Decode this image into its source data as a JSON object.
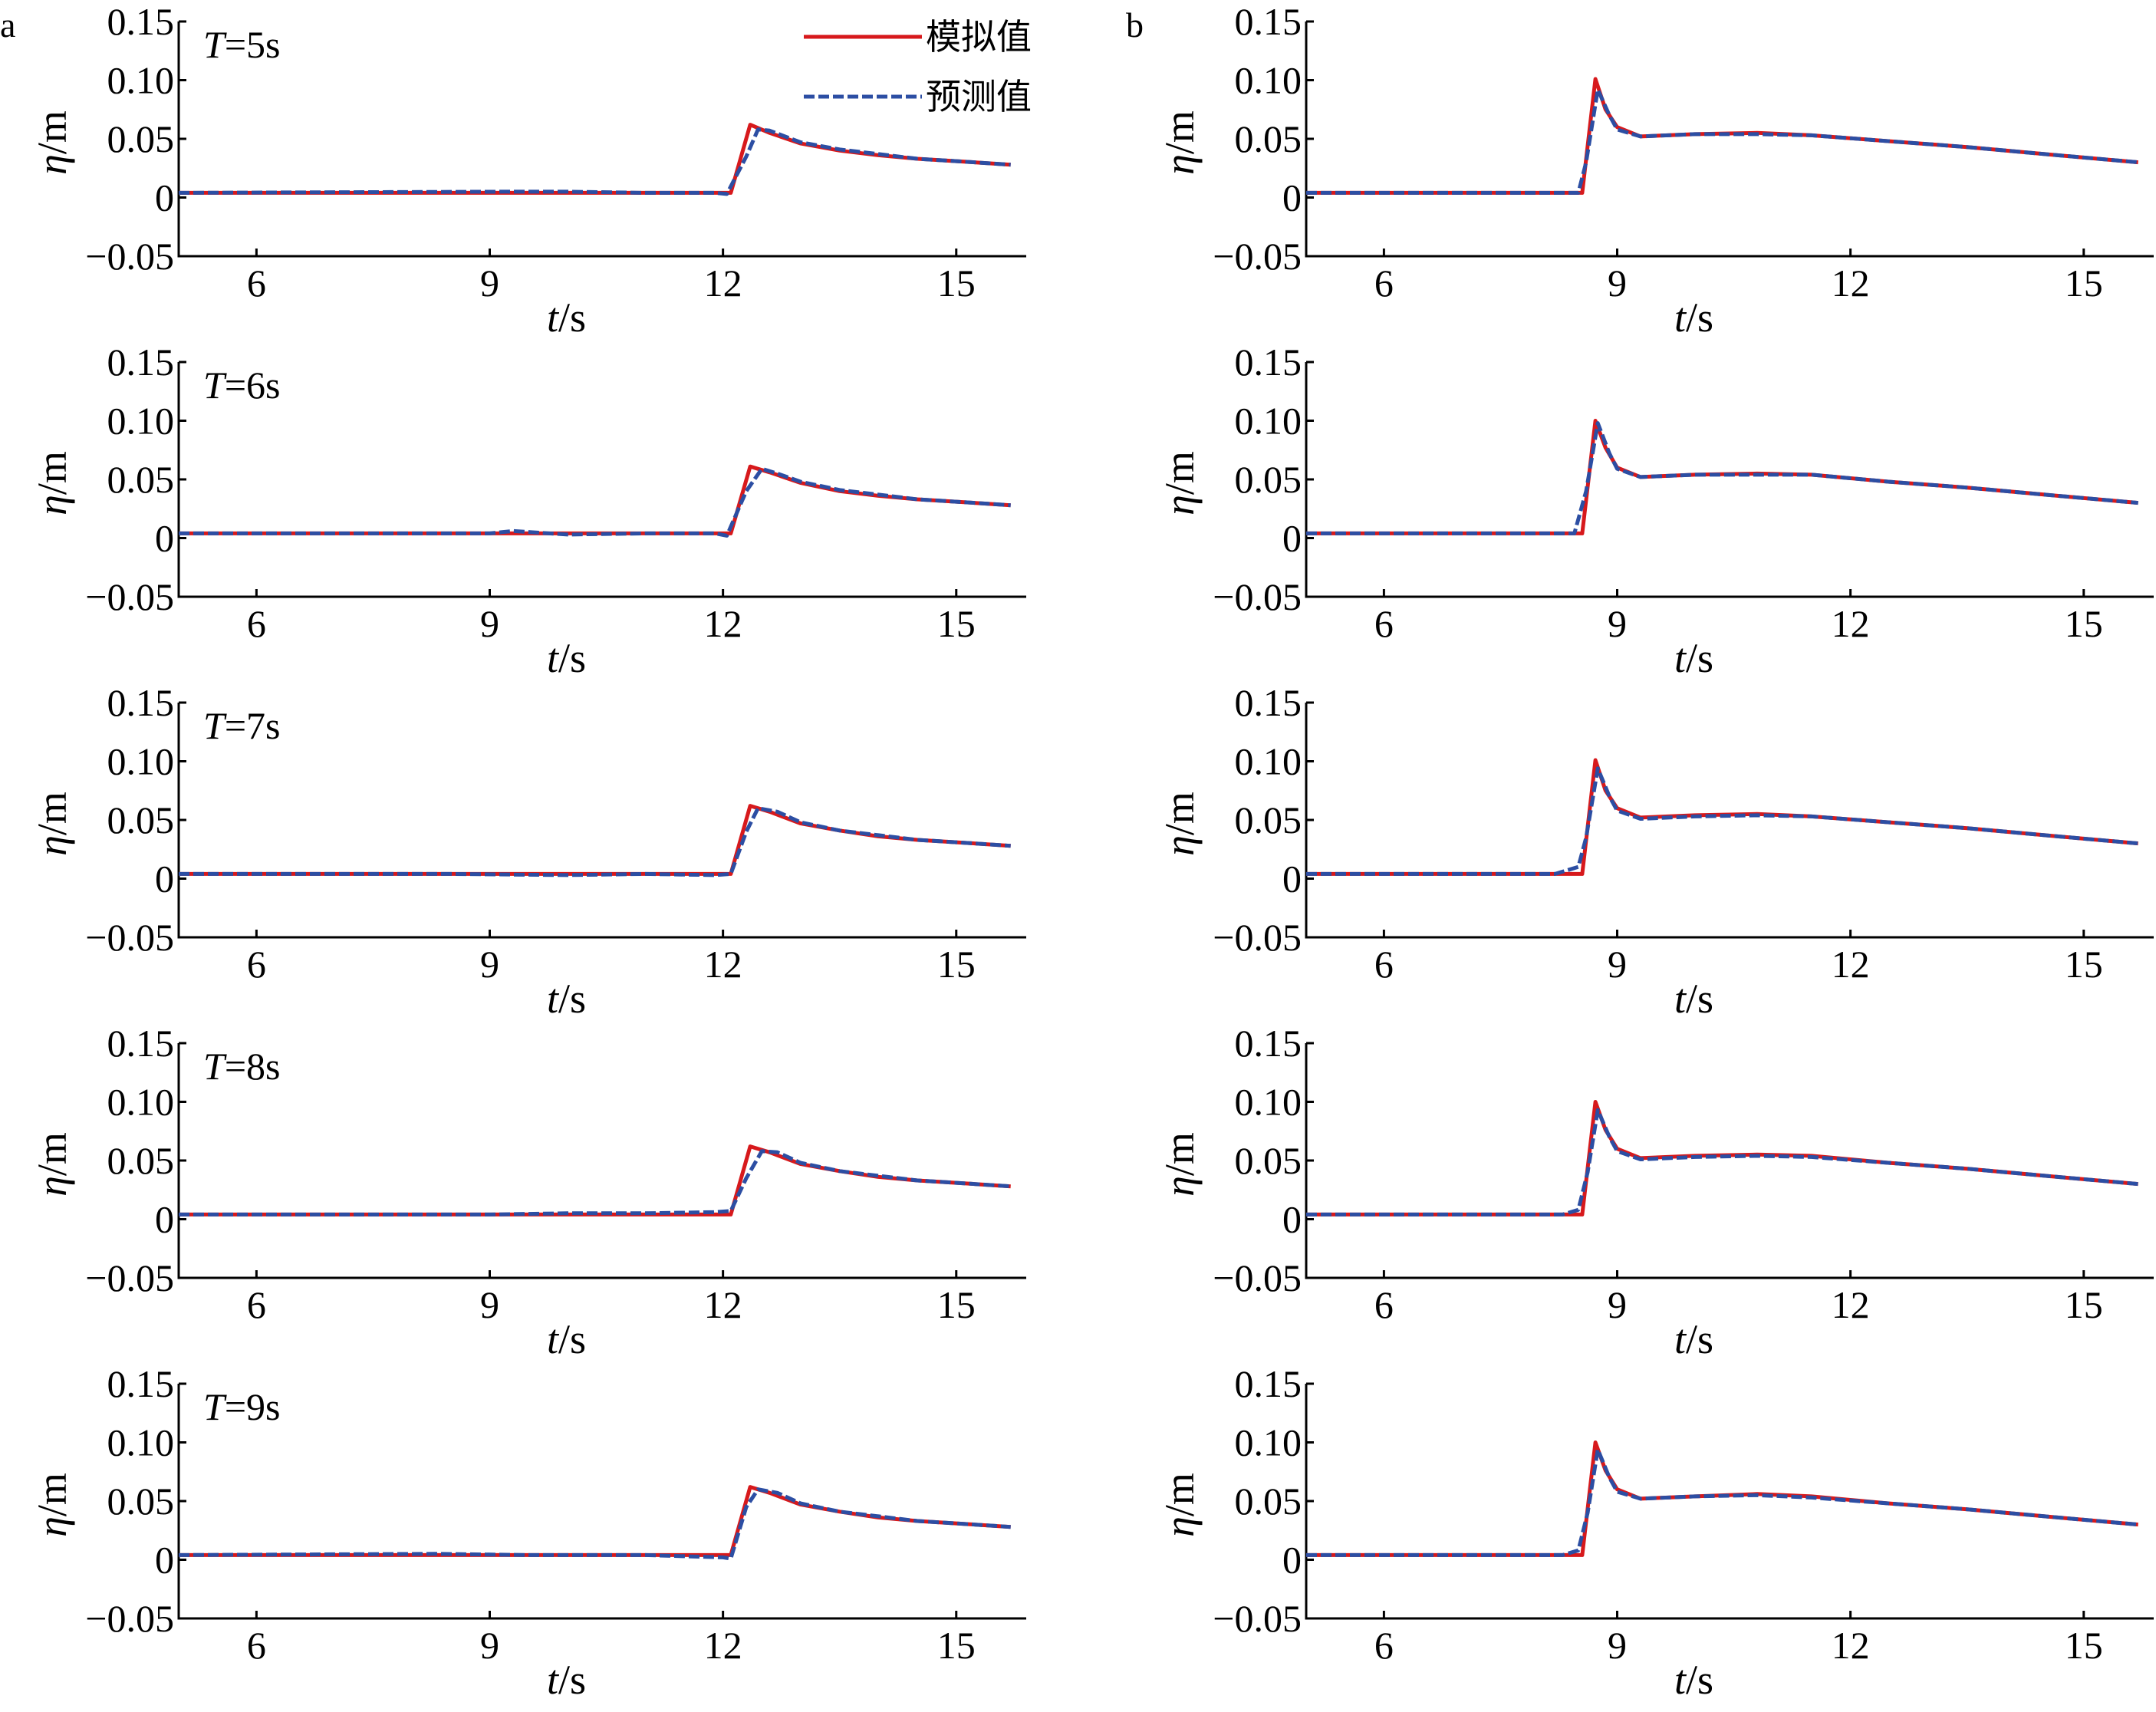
{
  "colors": {
    "simulated": "#d7191c",
    "predicted": "#2c4ea3",
    "axis": "#000000"
  },
  "legend": {
    "simulated_label": "模拟值",
    "predicted_label": "预测值"
  },
  "panels": [
    {
      "label": "a"
    },
    {
      "label": "b"
    }
  ],
  "chart_data": [
    {
      "type": "line",
      "panel": "a",
      "row": 0,
      "annotation_var": "T",
      "annotation_val": "=5s",
      "ylabel_sym": "η",
      "ylabel_unit": "/m",
      "xlabel_sym": "t",
      "xlabel_unit": "/s",
      "xlim": [
        5,
        15.9
      ],
      "ylim": [
        -0.05,
        0.15
      ],
      "xticks": [
        6,
        9,
        12,
        15
      ],
      "yticks": [
        -0.05,
        0,
        0.05,
        0.1,
        0.15
      ],
      "ytick_labels": [
        "−0.05",
        "0",
        "0.05",
        "0.10",
        "0.15"
      ],
      "series": [
        {
          "name": "模拟值",
          "x": [
            5,
            12.1,
            12.35,
            12.6,
            13,
            13.5,
            14,
            14.5,
            15,
            15.7
          ],
          "y": [
            0.004,
            0.004,
            0.062,
            0.055,
            0.046,
            0.04,
            0.036,
            0.033,
            0.031,
            0.028
          ]
        },
        {
          "name": "预测值",
          "x": [
            5,
            9.2,
            10,
            11,
            11.9,
            12.05,
            12.3,
            12.45,
            12.6,
            13,
            13.5,
            14,
            14.5,
            15,
            15.7
          ],
          "y": [
            0.004,
            0.005,
            0.005,
            0.004,
            0.004,
            0.003,
            0.035,
            0.058,
            0.057,
            0.047,
            0.041,
            0.037,
            0.033,
            0.031,
            0.028
          ]
        }
      ]
    },
    {
      "type": "line",
      "panel": "a",
      "row": 1,
      "annotation_var": "T",
      "annotation_val": "=6s",
      "ylabel_sym": "η",
      "ylabel_unit": "/m",
      "xlabel_sym": "t",
      "xlabel_unit": "/s",
      "xlim": [
        5,
        15.9
      ],
      "ylim": [
        -0.05,
        0.15
      ],
      "xticks": [
        6,
        9,
        12,
        15
      ],
      "yticks": [
        -0.05,
        0,
        0.05,
        0.1,
        0.15
      ],
      "ytick_labels": [
        "−0.05",
        "0",
        "0.05",
        "0.10",
        "0.15"
      ],
      "series": [
        {
          "name": "模拟值",
          "x": [
            5,
            12.1,
            12.35,
            12.6,
            13,
            13.5,
            14,
            14.5,
            15,
            15.7
          ],
          "y": [
            0.004,
            0.004,
            0.061,
            0.056,
            0.047,
            0.04,
            0.036,
            0.033,
            0.031,
            0.028
          ]
        },
        {
          "name": "预测值",
          "x": [
            5,
            9,
            9.3,
            10,
            11,
            11.9,
            12.05,
            12.3,
            12.5,
            12.7,
            13,
            13.5,
            14,
            14.5,
            15,
            15.7
          ],
          "y": [
            0.004,
            0.004,
            0.006,
            0.003,
            0.004,
            0.004,
            0.002,
            0.04,
            0.059,
            0.055,
            0.048,
            0.041,
            0.037,
            0.033,
            0.031,
            0.028
          ]
        }
      ]
    },
    {
      "type": "line",
      "panel": "a",
      "row": 2,
      "annotation_var": "T",
      "annotation_val": "=7s",
      "ylabel_sym": "η",
      "ylabel_unit": "/m",
      "xlabel_sym": "t",
      "xlabel_unit": "/s",
      "xlim": [
        5,
        15.9
      ],
      "ylim": [
        -0.05,
        0.15
      ],
      "xticks": [
        6,
        9,
        12,
        15
      ],
      "yticks": [
        -0.05,
        0,
        0.05,
        0.1,
        0.15
      ],
      "ytick_labels": [
        "−0.05",
        "0",
        "0.05",
        "0.10",
        "0.15"
      ],
      "series": [
        {
          "name": "模拟值",
          "x": [
            5,
            12.1,
            12.35,
            12.6,
            13,
            13.5,
            14,
            14.5,
            15,
            15.7
          ],
          "y": [
            0.004,
            0.004,
            0.062,
            0.057,
            0.047,
            0.041,
            0.036,
            0.033,
            0.031,
            0.028
          ]
        },
        {
          "name": "预测值",
          "x": [
            5,
            8.5,
            10,
            11,
            11.9,
            12.1,
            12.3,
            12.45,
            12.7,
            13,
            13.5,
            14,
            14.5,
            15,
            15.7
          ],
          "y": [
            0.004,
            0.004,
            0.003,
            0.004,
            0.003,
            0.004,
            0.04,
            0.06,
            0.057,
            0.048,
            0.041,
            0.037,
            0.033,
            0.031,
            0.028
          ]
        }
      ]
    },
    {
      "type": "line",
      "panel": "a",
      "row": 3,
      "annotation_var": "T",
      "annotation_val": "=8s",
      "ylabel_sym": "η",
      "ylabel_unit": "/m",
      "xlabel_sym": "t",
      "xlabel_unit": "/s",
      "xlim": [
        5,
        15.9
      ],
      "ylim": [
        -0.05,
        0.15
      ],
      "xticks": [
        6,
        9,
        12,
        15
      ],
      "yticks": [
        -0.05,
        0,
        0.05,
        0.1,
        0.15
      ],
      "ytick_labels": [
        "−0.05",
        "0",
        "0.05",
        "0.10",
        "0.15"
      ],
      "series": [
        {
          "name": "模拟值",
          "x": [
            5,
            12.1,
            12.35,
            12.6,
            13,
            13.5,
            14,
            14.5,
            15,
            15.7
          ],
          "y": [
            0.004,
            0.004,
            0.062,
            0.057,
            0.047,
            0.041,
            0.036,
            0.033,
            0.031,
            0.028
          ]
        },
        {
          "name": "预测值",
          "x": [
            5,
            9,
            10,
            11,
            11.9,
            12.1,
            12.3,
            12.5,
            12.7,
            13,
            13.5,
            14,
            14.5,
            15,
            15.7
          ],
          "y": [
            0.004,
            0.004,
            0.005,
            0.005,
            0.006,
            0.007,
            0.035,
            0.058,
            0.057,
            0.048,
            0.041,
            0.037,
            0.033,
            0.031,
            0.028
          ]
        }
      ]
    },
    {
      "type": "line",
      "panel": "a",
      "row": 4,
      "annotation_var": "T",
      "annotation_val": "=9s",
      "ylabel_sym": "η",
      "ylabel_unit": "/m",
      "xlabel_sym": "t",
      "xlabel_unit": "/s",
      "xlim": [
        5,
        15.9
      ],
      "ylim": [
        -0.05,
        0.15
      ],
      "xticks": [
        6,
        9,
        12,
        15
      ],
      "yticks": [
        -0.05,
        0,
        0.05,
        0.1,
        0.15
      ],
      "ytick_labels": [
        "−0.05",
        "0",
        "0.05",
        "0.10",
        "0.15"
      ],
      "series": [
        {
          "name": "模拟值",
          "x": [
            5,
            12.1,
            12.35,
            12.6,
            13,
            13.5,
            14,
            14.5,
            15,
            15.7
          ],
          "y": [
            0.004,
            0.004,
            0.062,
            0.057,
            0.047,
            0.041,
            0.036,
            0.033,
            0.031,
            0.028
          ]
        },
        {
          "name": "预测值",
          "x": [
            5,
            8.3,
            9.5,
            11,
            12,
            12.1,
            12.3,
            12.45,
            12.7,
            13,
            13.5,
            14,
            14.5,
            15,
            15.7
          ],
          "y": [
            0.004,
            0.005,
            0.004,
            0.004,
            0.002,
            0.001,
            0.045,
            0.06,
            0.057,
            0.048,
            0.041,
            0.037,
            0.033,
            0.031,
            0.028
          ]
        }
      ]
    },
    {
      "type": "line",
      "panel": "b",
      "row": 0,
      "ylabel_sym": "η",
      "ylabel_unit": "/m",
      "xlabel_sym": "t",
      "xlabel_unit": "/s",
      "xlim": [
        5,
        15.9
      ],
      "ylim": [
        -0.05,
        0.15
      ],
      "xticks": [
        6,
        9,
        12,
        15
      ],
      "yticks": [
        -0.05,
        0,
        0.05,
        0.1,
        0.15
      ],
      "ytick_labels": [
        "−0.05",
        "0",
        "0.05",
        "0.10",
        "0.15"
      ],
      "series": [
        {
          "name": "模拟值",
          "x": [
            5,
            8.55,
            8.72,
            8.85,
            9,
            9.3,
            10,
            10.8,
            11.5,
            12.5,
            13.5,
            14.5,
            15.7
          ],
          "y": [
            0.004,
            0.004,
            0.101,
            0.075,
            0.06,
            0.052,
            0.054,
            0.055,
            0.053,
            0.048,
            0.043,
            0.037,
            0.03
          ]
        },
        {
          "name": "预测值",
          "x": [
            5,
            8.5,
            8.6,
            8.75,
            8.9,
            9,
            9.3,
            10,
            10.8,
            11.5,
            12.5,
            13.5,
            14.5,
            15.7
          ],
          "y": [
            0.004,
            0.004,
            0.03,
            0.092,
            0.07,
            0.058,
            0.052,
            0.054,
            0.054,
            0.053,
            0.048,
            0.043,
            0.037,
            0.03
          ]
        }
      ]
    },
    {
      "type": "line",
      "panel": "b",
      "row": 1,
      "ylabel_sym": "η",
      "ylabel_unit": "/m",
      "xlabel_sym": "t",
      "xlabel_unit": "/s",
      "xlim": [
        5,
        15.9
      ],
      "ylim": [
        -0.05,
        0.15
      ],
      "xticks": [
        6,
        9,
        12,
        15
      ],
      "yticks": [
        -0.05,
        0,
        0.05,
        0.1,
        0.15
      ],
      "ytick_labels": [
        "−0.05",
        "0",
        "0.05",
        "0.10",
        "0.15"
      ],
      "series": [
        {
          "name": "模拟值",
          "x": [
            5,
            8.55,
            8.72,
            8.85,
            9,
            9.3,
            10,
            10.8,
            11.5,
            12.5,
            13.5,
            14.5,
            15.7
          ],
          "y": [
            0.004,
            0.004,
            0.1,
            0.077,
            0.06,
            0.052,
            0.054,
            0.055,
            0.054,
            0.048,
            0.043,
            0.037,
            0.03
          ]
        },
        {
          "name": "预测值",
          "x": [
            5,
            8.45,
            8.6,
            8.75,
            8.9,
            9,
            9.3,
            10,
            10.8,
            11.5,
            12.5,
            13.5,
            14.5,
            15.7
          ],
          "y": [
            0.004,
            0.004,
            0.04,
            0.098,
            0.072,
            0.059,
            0.052,
            0.054,
            0.054,
            0.054,
            0.048,
            0.043,
            0.037,
            0.03
          ]
        }
      ]
    },
    {
      "type": "line",
      "panel": "b",
      "row": 2,
      "ylabel_sym": "η",
      "ylabel_unit": "/m",
      "xlabel_sym": "t",
      "xlabel_unit": "/s",
      "xlim": [
        5,
        15.9
      ],
      "ylim": [
        -0.05,
        0.15
      ],
      "xticks": [
        6,
        9,
        12,
        15
      ],
      "yticks": [
        -0.05,
        0,
        0.05,
        0.1,
        0.15
      ],
      "ytick_labels": [
        "−0.05",
        "0",
        "0.05",
        "0.10",
        "0.15"
      ],
      "series": [
        {
          "name": "模拟值",
          "x": [
            5,
            8.55,
            8.72,
            8.85,
            9,
            9.3,
            10,
            10.8,
            11.5,
            12.5,
            13.5,
            14.5,
            15.7
          ],
          "y": [
            0.004,
            0.004,
            0.101,
            0.075,
            0.06,
            0.052,
            0.054,
            0.055,
            0.053,
            0.048,
            0.043,
            0.037,
            0.03
          ]
        },
        {
          "name": "预测值",
          "x": [
            5,
            8.2,
            8.5,
            8.6,
            8.75,
            8.9,
            9,
            9.3,
            10,
            10.8,
            11.5,
            12.5,
            13.5,
            14.5,
            15.7
          ],
          "y": [
            0.004,
            0.004,
            0.01,
            0.035,
            0.094,
            0.07,
            0.058,
            0.051,
            0.053,
            0.054,
            0.053,
            0.048,
            0.043,
            0.037,
            0.03
          ]
        }
      ]
    },
    {
      "type": "line",
      "panel": "b",
      "row": 3,
      "ylabel_sym": "η",
      "ylabel_unit": "/m",
      "xlabel_sym": "t",
      "xlabel_unit": "/s",
      "xlim": [
        5,
        15.9
      ],
      "ylim": [
        -0.05,
        0.15
      ],
      "xticks": [
        6,
        9,
        12,
        15
      ],
      "yticks": [
        -0.05,
        0,
        0.05,
        0.1,
        0.15
      ],
      "ytick_labels": [
        "−0.05",
        "0",
        "0.05",
        "0.10",
        "0.15"
      ],
      "series": [
        {
          "name": "模拟值",
          "x": [
            5,
            8.55,
            8.72,
            8.85,
            9,
            9.3,
            10,
            10.8,
            11.5,
            12.5,
            13.5,
            14.5,
            15.7
          ],
          "y": [
            0.004,
            0.004,
            0.1,
            0.076,
            0.06,
            0.052,
            0.054,
            0.055,
            0.054,
            0.048,
            0.043,
            0.037,
            0.03
          ]
        },
        {
          "name": "预测值",
          "x": [
            5,
            8.3,
            8.5,
            8.62,
            8.75,
            8.9,
            9,
            9.3,
            10,
            10.8,
            11.5,
            12.5,
            13.5,
            14.5,
            15.7
          ],
          "y": [
            0.004,
            0.004,
            0.008,
            0.04,
            0.093,
            0.07,
            0.058,
            0.051,
            0.053,
            0.054,
            0.053,
            0.048,
            0.043,
            0.037,
            0.03
          ]
        }
      ]
    },
    {
      "type": "line",
      "panel": "b",
      "row": 4,
      "ylabel_sym": "η",
      "ylabel_unit": "/m",
      "xlabel_sym": "t",
      "xlabel_unit": "/s",
      "xlim": [
        5,
        15.9
      ],
      "ylim": [
        -0.05,
        0.15
      ],
      "xticks": [
        6,
        9,
        12,
        15
      ],
      "yticks": [
        -0.05,
        0,
        0.05,
        0.1,
        0.15
      ],
      "ytick_labels": [
        "−0.05",
        "0",
        "0.05",
        "0.10",
        "0.15"
      ],
      "series": [
        {
          "name": "模拟值",
          "x": [
            5,
            8.55,
            8.72,
            8.85,
            9,
            9.3,
            10,
            10.8,
            11.5,
            12.5,
            13.5,
            14.5,
            15.7
          ],
          "y": [
            0.004,
            0.004,
            0.1,
            0.076,
            0.06,
            0.052,
            0.054,
            0.056,
            0.054,
            0.048,
            0.043,
            0.037,
            0.03
          ]
        },
        {
          "name": "预测值",
          "x": [
            5,
            8.3,
            8.5,
            8.62,
            8.75,
            8.9,
            9,
            9.3,
            10,
            10.8,
            11.5,
            12.5,
            13.5,
            14.5,
            15.7
          ],
          "y": [
            0.004,
            0.004,
            0.008,
            0.04,
            0.094,
            0.07,
            0.058,
            0.052,
            0.054,
            0.055,
            0.053,
            0.048,
            0.043,
            0.037,
            0.03
          ]
        }
      ]
    }
  ]
}
